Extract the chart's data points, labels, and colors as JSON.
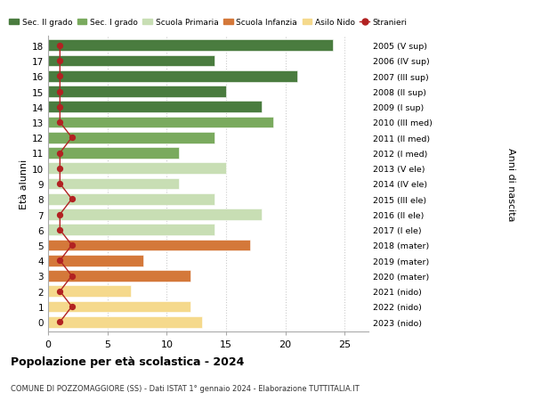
{
  "ages": [
    18,
    17,
    16,
    15,
    14,
    13,
    12,
    11,
    10,
    9,
    8,
    7,
    6,
    5,
    4,
    3,
    2,
    1,
    0
  ],
  "bar_values": [
    24,
    14,
    21,
    15,
    18,
    19,
    14,
    11,
    15,
    11,
    14,
    18,
    14,
    17,
    8,
    12,
    7,
    12,
    13
  ],
  "stranieri": [
    1,
    1,
    1,
    1,
    1,
    1,
    2,
    1,
    1,
    1,
    2,
    1,
    1,
    2,
    1,
    2,
    1,
    2,
    1
  ],
  "right_labels": [
    "2005 (V sup)",
    "2006 (IV sup)",
    "2007 (III sup)",
    "2008 (II sup)",
    "2009 (I sup)",
    "2010 (III med)",
    "2011 (II med)",
    "2012 (I med)",
    "2013 (V ele)",
    "2014 (IV ele)",
    "2015 (III ele)",
    "2016 (II ele)",
    "2017 (I ele)",
    "2018 (mater)",
    "2019 (mater)",
    "2020 (mater)",
    "2021 (nido)",
    "2022 (nido)",
    "2023 (nido)"
  ],
  "bar_colors": [
    "#4a7c3f",
    "#4a7c3f",
    "#4a7c3f",
    "#4a7c3f",
    "#4a7c3f",
    "#7aaa5e",
    "#7aaa5e",
    "#7aaa5e",
    "#c8deb4",
    "#c8deb4",
    "#c8deb4",
    "#c8deb4",
    "#c8deb4",
    "#d4783a",
    "#d4783a",
    "#d4783a",
    "#f5d98c",
    "#f5d98c",
    "#f5d98c"
  ],
  "colors": {
    "sec_II": "#4a7c3f",
    "sec_I": "#7aaa5e",
    "primaria": "#c8deb4",
    "infanzia": "#d4783a",
    "nido": "#f5d98c",
    "stranieri": "#b22222"
  },
  "legend_labels": [
    "Sec. II grado",
    "Sec. I grado",
    "Scuola Primaria",
    "Scuola Infanzia",
    "Asilo Nido",
    "Stranieri"
  ],
  "legend_colors": [
    "#4a7c3f",
    "#7aaa5e",
    "#c8deb4",
    "#d4783a",
    "#f5d98c",
    "#b22222"
  ],
  "title": "Popolazione per età scolastica - 2024",
  "subtitle": "COMUNE DI POZZOMAGGIORE (SS) - Dati ISTAT 1° gennaio 2024 - Elaborazione TUTTITALIA.IT",
  "ylabel": "Età alunni",
  "right_ylabel": "Anni di nascita",
  "xlim": [
    0,
    27
  ],
  "xticks": [
    0,
    5,
    10,
    15,
    20,
    25
  ],
  "grid_color": "#cccccc"
}
